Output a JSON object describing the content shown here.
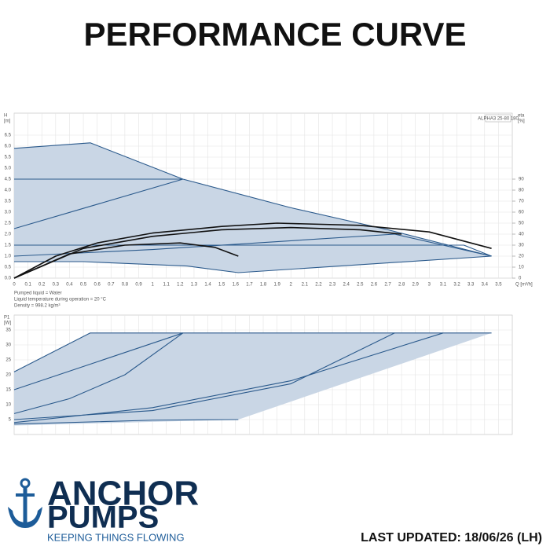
{
  "title": "PERFORMANCE CURVE",
  "brand": {
    "line1": "ANCHOR",
    "line2": "PUMPS",
    "tagline": "KEEPING THINGS FLOWING"
  },
  "footer": "LAST UPDATED: 18/06/26 (LH)",
  "chart_data": [
    {
      "type": "line",
      "model_label": "ALPHA3 25-80 180",
      "ylabel": "H",
      "yunit": "[m]",
      "y2label": "eta",
      "y2unit": "[%]",
      "xlabel": "Q [m³/h]",
      "annotations": [
        "Pumped liquid = Water",
        "Liquid temperature during operation = 20 °C",
        "Density = 998.2 kg/m³"
      ],
      "xlim": [
        0,
        3.6
      ],
      "ylim": [
        0,
        7.5
      ],
      "y2lim": [
        0,
        150
      ],
      "grid": true,
      "xtick_labels": true,
      "xticks": [
        0,
        0.1,
        0.2,
        0.3,
        0.4,
        0.5,
        0.6,
        0.7,
        0.8,
        0.9,
        1,
        1.1,
        1.2,
        1.3,
        1.4,
        1.5,
        1.6,
        1.7,
        1.8,
        1.9,
        2,
        2.1,
        2.2,
        2.3,
        2.4,
        2.5,
        2.6,
        2.7,
        2.8,
        2.9,
        3,
        3.1,
        3.2,
        3.3,
        3.4,
        3.5
      ],
      "yticks": [
        {
          "value": 0,
          "label": "0.0"
        },
        0.5,
        {
          "value": 1,
          "label": "1.0"
        },
        1.5,
        {
          "value": 2,
          "label": "2.0"
        },
        2.5,
        {
          "value": 3,
          "label": "3.0"
        },
        3.5,
        {
          "value": 4,
          "label": "4.0"
        },
        4.5,
        {
          "value": 5,
          "label": "5.0"
        },
        5.5,
        {
          "value": 6,
          "label": "6.0"
        },
        6.5
      ],
      "y2ticks": [
        0,
        10,
        20,
        30,
        40,
        50,
        60,
        70,
        80,
        90
      ],
      "series": [
        {
          "color": "#c9d6e5",
          "fill": true,
          "x": [
            0,
            0.55,
            1.22,
            2.0,
            2.7,
            3.45,
            1.62,
            1.25,
            0.5,
            0
          ],
          "values": [
            5.9,
            6.15,
            4.5,
            3.2,
            2.2,
            1.0,
            0.25,
            0.55,
            0.75,
            0.75
          ]
        },
        {
          "color": "#2b5a8c",
          "x": [
            0,
            0.55,
            1.22,
            2.0,
            2.7,
            3.45
          ],
          "values": [
            5.9,
            6.15,
            4.5,
            3.2,
            2.2,
            1.0
          ]
        },
        {
          "color": "#2b5a8c",
          "x": [
            0,
            1.22
          ],
          "values": [
            4.5,
            4.5
          ]
        },
        {
          "color": "#2b5a8c",
          "x": [
            0,
            1.22
          ],
          "values": [
            2.25,
            4.5
          ]
        },
        {
          "color": "#2b5a8c",
          "x": [
            0,
            3.25,
            3.45
          ],
          "values": [
            1.5,
            1.5,
            1.0
          ]
        },
        {
          "color": "#2b5a8c",
          "x": [
            0,
            1.0,
            2.0,
            2.75,
            3.45
          ],
          "values": [
            1.0,
            1.3,
            1.7,
            2.0,
            1.0
          ]
        },
        {
          "color": "#2b5a8c",
          "x": [
            0,
            0.5,
            1.25,
            1.62,
            3.45
          ],
          "values": [
            0.75,
            0.75,
            0.55,
            0.25,
            1.0
          ]
        },
        {
          "color": "#111111",
          "axis": "y2",
          "x": [
            0,
            0.3,
            0.6,
            1.0,
            1.5,
            1.9,
            2.5,
            3.0,
            3.45
          ],
          "values": [
            0,
            20,
            32,
            41,
            47,
            50,
            48,
            42,
            27
          ]
        },
        {
          "color": "#111111",
          "axis": "y2",
          "x": [
            0,
            0.5,
            1.0,
            1.5,
            2.0,
            2.5,
            2.8
          ],
          "values": [
            0,
            27,
            38,
            44,
            46,
            44,
            40
          ]
        },
        {
          "color": "#111111",
          "axis": "y2",
          "x": [
            0,
            0.4,
            0.8,
            1.2,
            1.45,
            1.62
          ],
          "values": [
            0,
            22,
            30,
            32,
            28,
            20
          ]
        }
      ]
    },
    {
      "type": "line",
      "ylabel": "P1",
      "yunit": "[W]",
      "xlim": [
        0,
        3.6
      ],
      "ylim": [
        0,
        40
      ],
      "grid": true,
      "xtick_labels": false,
      "xticks": [
        0,
        0.1,
        0.2,
        0.3,
        0.4,
        0.5,
        0.6,
        0.7,
        0.8,
        0.9,
        1,
        1.1,
        1.2,
        1.3,
        1.4,
        1.5,
        1.6,
        1.7,
        1.8,
        1.9,
        2,
        2.1,
        2.2,
        2.3,
        2.4,
        2.5,
        2.6,
        2.7,
        2.8,
        2.9,
        3,
        3.1,
        3.2,
        3.3,
        3.4,
        3.5
      ],
      "yticks": [
        5,
        10,
        15,
        20,
        25,
        30,
        35
      ],
      "series": [
        {
          "color": "#c9d6e5",
          "fill": true,
          "x": [
            0,
            0.55,
            3.45,
            1.62,
            0
          ],
          "values": [
            21,
            34,
            34,
            5,
            3
          ]
        },
        {
          "color": "#2b5a8c",
          "x": [
            0,
            0.55,
            3.45
          ],
          "values": [
            21,
            34,
            34
          ]
        },
        {
          "color": "#2b5a8c",
          "x": [
            0,
            1.22
          ],
          "values": [
            15,
            34
          ]
        },
        {
          "color": "#2b5a8c",
          "x": [
            0,
            0.4,
            0.8,
            1.22
          ],
          "values": [
            7,
            12,
            20,
            34
          ]
        },
        {
          "color": "#2b5a8c",
          "x": [
            0,
            1.0,
            2.0,
            2.75
          ],
          "values": [
            5,
            8,
            17,
            34
          ]
        },
        {
          "color": "#2b5a8c",
          "x": [
            0,
            1.0,
            2.0,
            3.1
          ],
          "values": [
            4,
            9,
            18,
            34
          ]
        },
        {
          "color": "#2b5a8c",
          "x": [
            0,
            1.0,
            1.62
          ],
          "values": [
            3.5,
            4.8,
            5
          ]
        }
      ]
    }
  ]
}
